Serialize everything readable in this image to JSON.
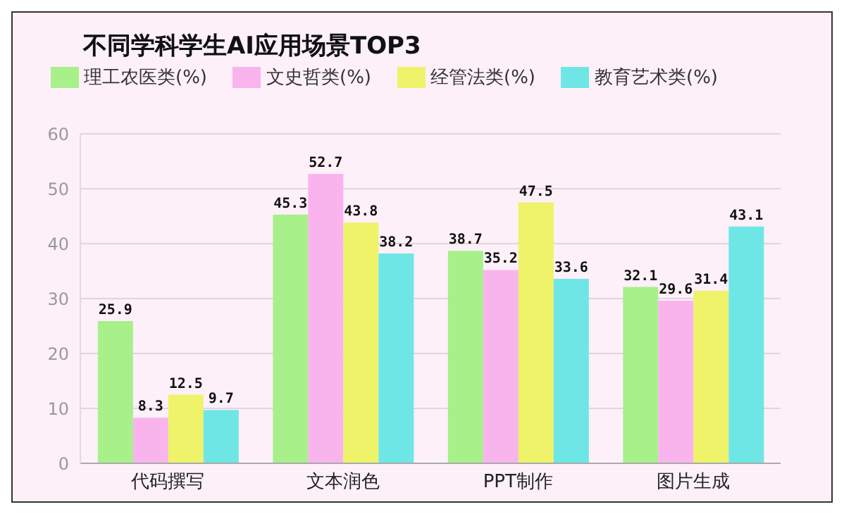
{
  "chart_data": {
    "type": "bar",
    "title": "不同学科学生AI应用场景TOP3",
    "categories": [
      "代码撰写",
      "文本润色",
      "PPT制作",
      "图片生成"
    ],
    "series": [
      {
        "name": "理工农医类(%)",
        "color": "#a8f08a",
        "values": [
          25.9,
          45.3,
          38.7,
          32.1
        ]
      },
      {
        "name": "文史哲类(%)",
        "color": "#f9b4ee",
        "values": [
          8.3,
          52.7,
          35.2,
          29.6
        ]
      },
      {
        "name": "经管法类(%)",
        "color": "#eef36a",
        "values": [
          12.5,
          43.8,
          47.5,
          31.4
        ]
      },
      {
        "name": "教育艺术类(%)",
        "color": "#6ee6e6",
        "values": [
          9.7,
          38.2,
          33.6,
          43.1
        ]
      }
    ],
    "ylim": [
      0,
      60
    ],
    "yticks": [
      0,
      10,
      20,
      30,
      40,
      50,
      60
    ],
    "grid": "y",
    "legend": "top",
    "data_labels": true
  }
}
